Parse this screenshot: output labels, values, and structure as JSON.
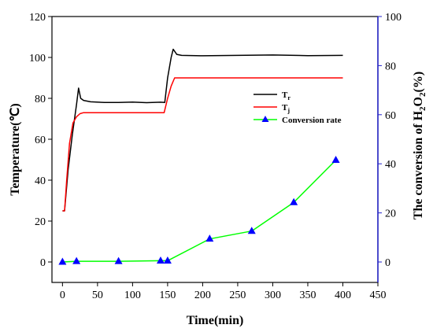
{
  "chart_data": {
    "type": "line",
    "xlabel": "Time(min)",
    "ylabel_left": "Temperature(℃)",
    "ylabel_right": {
      "pre": "The conversion of H",
      "sub1": "2",
      "mid": "O",
      "sub2": "2",
      "post": "(%)"
    },
    "xlim": [
      -15,
      450
    ],
    "ylim_left": [
      -10,
      120
    ],
    "ylim_right": [
      -8.33,
      100
    ],
    "xticks": [
      0,
      50,
      100,
      150,
      200,
      250,
      300,
      350,
      400,
      450
    ],
    "yticks_left": [
      0,
      20,
      40,
      60,
      80,
      100,
      120
    ],
    "yticks_right": [
      0,
      20,
      40,
      60,
      80,
      100
    ],
    "legend_position": "right-middle",
    "series": [
      {
        "name": "Tr",
        "legend": {
          "main": "T",
          "sub": "r"
        },
        "axis": "left",
        "color": "#000000",
        "x": [
          0,
          3,
          8,
          14,
          20,
          23,
          26,
          30,
          40,
          60,
          80,
          100,
          120,
          140,
          146,
          150,
          155,
          158,
          163,
          170,
          200,
          250,
          300,
          350,
          400
        ],
        "y": [
          25,
          25,
          45,
          62,
          77,
          85,
          80,
          79,
          78.3,
          78,
          78,
          78.2,
          77.9,
          78.1,
          78,
          90,
          100,
          104,
          101.5,
          101,
          100.8,
          101,
          101.2,
          100.9,
          101
        ]
      },
      {
        "name": "Tj",
        "legend": {
          "main": "T",
          "sub": "j"
        },
        "axis": "left",
        "color": "#ff0000",
        "x": [
          0,
          3,
          6,
          10,
          15,
          20,
          25,
          30,
          60,
          100,
          130,
          145,
          150,
          155,
          160,
          200,
          250,
          300,
          350,
          400
        ],
        "y": [
          25,
          25,
          40,
          58,
          68,
          71,
          72.5,
          73,
          73,
          73,
          73,
          73,
          80,
          86,
          90,
          90,
          90,
          90,
          90,
          90
        ]
      },
      {
        "name": "Conversion rate",
        "legend": {
          "main": "Conversion rate",
          "sub": ""
        },
        "axis": "right",
        "color": "#00ff00",
        "marker_color": "#0000ff",
        "x": [
          0,
          20,
          80,
          140,
          150,
          210,
          270,
          330,
          390
        ],
        "y": [
          0,
          0.3,
          0.3,
          0.5,
          0.5,
          9.4,
          12.6,
          24.3,
          41.5
        ]
      }
    ]
  }
}
